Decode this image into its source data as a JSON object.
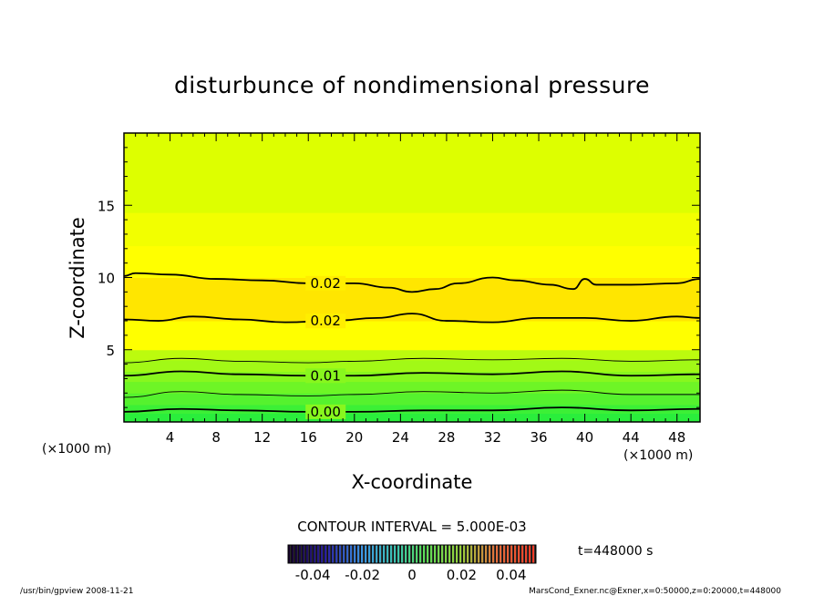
{
  "chart_data": {
    "type": "contour",
    "title": "disturbunce of nondimensional pressure",
    "xlabel": "X-coordinate",
    "ylabel": "Z-coordinate",
    "x_unit": "(×1000 m)",
    "y_unit": "(×1000 m)",
    "xlim": [
      0,
      50
    ],
    "ylim": [
      0,
      20
    ],
    "x_ticks": [
      4,
      8,
      12,
      16,
      20,
      24,
      28,
      32,
      36,
      40,
      44,
      48
    ],
    "y_ticks": [
      5,
      10,
      15
    ],
    "contour_interval_label": "CONTOUR INTERVAL = 5.000E-03",
    "time_label": "t=448000 s",
    "colorbar": {
      "min": -0.05,
      "max": 0.05,
      "ticks": [
        "-0.04",
        "-0.02",
        "0",
        "0.02",
        "0.04"
      ],
      "tick_values": [
        -0.04,
        -0.02,
        0,
        0.02,
        0.04
      ]
    },
    "fill_bands": [
      {
        "z_from": 0.0,
        "z_to": 0.6,
        "color": "#2aee3c"
      },
      {
        "z_from": 0.6,
        "z_to": 1.2,
        "color": "#3cf036"
      },
      {
        "z_from": 1.2,
        "z_to": 2.0,
        "color": "#55f22e"
      },
      {
        "z_from": 2.0,
        "z_to": 2.8,
        "color": "#6ef526"
      },
      {
        "z_from": 2.8,
        "z_to": 3.5,
        "color": "#88f71e"
      },
      {
        "z_from": 3.5,
        "z_to": 4.3,
        "color": "#a2f916"
      },
      {
        "z_from": 4.3,
        "z_to": 5.0,
        "color": "#bcfb0e"
      },
      {
        "z_from": 5.0,
        "z_to": 7.0,
        "color": "#ffff00"
      },
      {
        "z_from": 7.0,
        "z_to": 10.0,
        "color": "#ffe600"
      },
      {
        "z_from": 10.0,
        "z_to": 12.2,
        "color": "#ffff00"
      },
      {
        "z_from": 12.2,
        "z_to": 14.5,
        "color": "#f2ff00"
      },
      {
        "z_from": 14.5,
        "z_to": 20.0,
        "color": "#ddff00"
      }
    ],
    "contours": [
      {
        "label": "0.00",
        "label_x": 17.5,
        "heavy": true,
        "points": [
          [
            0,
            0.7
          ],
          [
            5,
            0.9
          ],
          [
            10,
            0.8
          ],
          [
            16,
            0.7
          ],
          [
            20,
            0.7
          ],
          [
            26,
            0.8
          ],
          [
            32,
            0.8
          ],
          [
            38,
            1.0
          ],
          [
            44,
            0.8
          ],
          [
            50,
            0.9
          ]
        ]
      },
      {
        "label": "",
        "label_x": null,
        "heavy": false,
        "points": [
          [
            0,
            1.7
          ],
          [
            5,
            2.1
          ],
          [
            10,
            1.9
          ],
          [
            16,
            1.8
          ],
          [
            20,
            1.9
          ],
          [
            26,
            2.1
          ],
          [
            32,
            2.0
          ],
          [
            38,
            2.2
          ],
          [
            44,
            1.9
          ],
          [
            50,
            1.9
          ]
        ]
      },
      {
        "label": "0.01",
        "label_x": 17.5,
        "heavy": true,
        "points": [
          [
            0,
            3.2
          ],
          [
            5,
            3.5
          ],
          [
            10,
            3.3
          ],
          [
            16,
            3.2
          ],
          [
            20,
            3.2
          ],
          [
            26,
            3.4
          ],
          [
            32,
            3.3
          ],
          [
            38,
            3.5
          ],
          [
            44,
            3.2
          ],
          [
            50,
            3.3
          ]
        ]
      },
      {
        "label": "",
        "label_x": null,
        "heavy": false,
        "points": [
          [
            0,
            4.1
          ],
          [
            5,
            4.4
          ],
          [
            10,
            4.2
          ],
          [
            16,
            4.1
          ],
          [
            20,
            4.2
          ],
          [
            26,
            4.4
          ],
          [
            32,
            4.3
          ],
          [
            38,
            4.4
          ],
          [
            44,
            4.2
          ],
          [
            50,
            4.3
          ]
        ]
      },
      {
        "label": "0.02",
        "label_x": 17.5,
        "heavy": true,
        "points": [
          [
            0,
            7.1
          ],
          [
            3,
            7.0
          ],
          [
            6,
            7.3
          ],
          [
            10,
            7.1
          ],
          [
            14,
            6.9
          ],
          [
            18,
            7.0
          ],
          [
            22,
            7.2
          ],
          [
            25,
            7.5
          ],
          [
            28,
            7.0
          ],
          [
            32,
            6.9
          ],
          [
            36,
            7.2
          ],
          [
            40,
            7.2
          ],
          [
            44,
            7.0
          ],
          [
            48,
            7.3
          ],
          [
            50,
            7.2
          ]
        ]
      },
      {
        "label": "0.02",
        "label_x": 17.5,
        "heavy": true,
        "points": [
          [
            0,
            10.1
          ],
          [
            1,
            10.3
          ],
          [
            4,
            10.2
          ],
          [
            8,
            9.9
          ],
          [
            12,
            9.8
          ],
          [
            16,
            9.6
          ],
          [
            20,
            9.6
          ],
          [
            23,
            9.3
          ],
          [
            25,
            9.0
          ],
          [
            27,
            9.2
          ],
          [
            29,
            9.6
          ],
          [
            32,
            10.0
          ],
          [
            34,
            9.8
          ],
          [
            37,
            9.5
          ],
          [
            39,
            9.2
          ],
          [
            40,
            9.9
          ],
          [
            41,
            9.5
          ],
          [
            44,
            9.5
          ],
          [
            48,
            9.6
          ],
          [
            50,
            9.9
          ]
        ]
      }
    ]
  },
  "footer": {
    "left": "/usr/bin/gpview   2008-11-21",
    "right": "MarsCond_Exner.nc@Exner,x=0:50000,z=0:20000,t=448000"
  }
}
